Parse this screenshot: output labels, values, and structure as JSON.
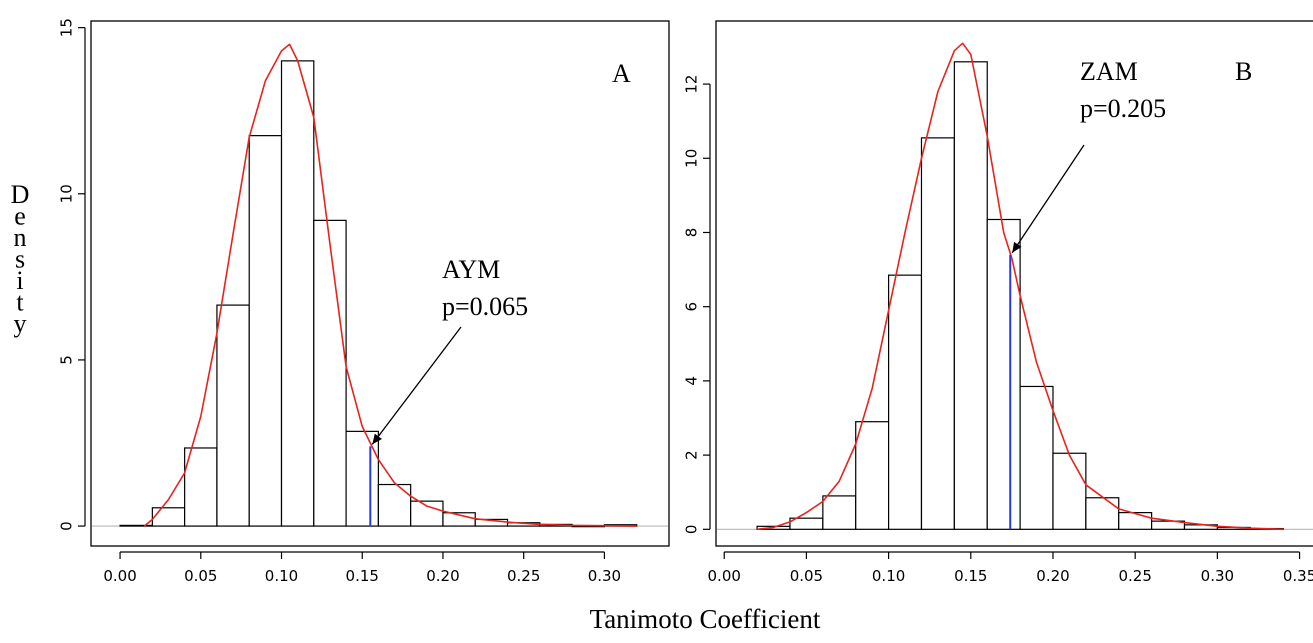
{
  "figure": {
    "ylabel": "Density",
    "xlabel": "Tanimoto Coefficient"
  },
  "chart_data": [
    {
      "type": "bar",
      "panel_label": "A",
      "bin_edges": [
        0.0,
        0.02,
        0.04,
        0.06,
        0.08,
        0.1,
        0.12,
        0.14,
        0.16,
        0.18,
        0.2,
        0.22,
        0.24,
        0.26,
        0.28,
        0.3,
        0.32
      ],
      "values": [
        0.02,
        0.55,
        2.35,
        6.65,
        11.75,
        14.0,
        9.2,
        2.85,
        1.25,
        0.75,
        0.4,
        0.2,
        0.1,
        0.05,
        0.0,
        0.04
      ],
      "density_curve": {
        "x": [
          0.015,
          0.02,
          0.03,
          0.04,
          0.05,
          0.06,
          0.07,
          0.08,
          0.09,
          0.1,
          0.105,
          0.11,
          0.12,
          0.13,
          0.14,
          0.15,
          0.155,
          0.16,
          0.17,
          0.18,
          0.19,
          0.2,
          0.22,
          0.24,
          0.26,
          0.28,
          0.3,
          0.32
        ],
        "y": [
          0.0,
          0.2,
          0.8,
          1.6,
          3.3,
          5.8,
          8.8,
          11.7,
          13.4,
          14.3,
          14.5,
          14.0,
          12.3,
          8.5,
          4.8,
          3.0,
          2.5,
          2.0,
          1.3,
          0.9,
          0.6,
          0.45,
          0.22,
          0.12,
          0.05,
          0.02,
          0.01,
          0.0
        ]
      },
      "marker": {
        "x": 0.155,
        "y": 2.4,
        "label": "AYM",
        "pvalue": "p=0.065"
      },
      "xticks": [
        "0.00",
        "0.05",
        "0.10",
        "0.15",
        "0.20",
        "0.25",
        "0.30"
      ],
      "yticks": [
        "0",
        "5",
        "10",
        "15"
      ],
      "xlim": [
        -0.018,
        0.34
      ],
      "ylim": [
        -0.6,
        15.2
      ],
      "colors": {
        "bars": "#000000",
        "curve": "#e8231e",
        "marker": "#2b3bd6",
        "baseline": "#b8b8b8"
      }
    },
    {
      "type": "bar",
      "panel_label": "B",
      "bin_edges": [
        0.02,
        0.04,
        0.06,
        0.08,
        0.1,
        0.12,
        0.14,
        0.16,
        0.18,
        0.2,
        0.22,
        0.24,
        0.26,
        0.28,
        0.3,
        0.32,
        0.34
      ],
      "values": [
        0.08,
        0.3,
        0.9,
        2.9,
        6.85,
        10.55,
        12.6,
        8.35,
        3.85,
        2.05,
        0.85,
        0.45,
        0.22,
        0.12,
        0.05,
        0.02
      ],
      "density_curve": {
        "x": [
          0.02,
          0.03,
          0.04,
          0.05,
          0.06,
          0.07,
          0.08,
          0.09,
          0.1,
          0.11,
          0.12,
          0.13,
          0.14,
          0.145,
          0.15,
          0.16,
          0.17,
          0.175,
          0.18,
          0.19,
          0.2,
          0.21,
          0.22,
          0.24,
          0.26,
          0.28,
          0.3,
          0.32,
          0.34
        ],
        "y": [
          0.0,
          0.05,
          0.2,
          0.45,
          0.75,
          1.3,
          2.3,
          3.8,
          5.9,
          8.0,
          10.0,
          11.8,
          12.9,
          13.1,
          12.8,
          10.6,
          8.0,
          7.3,
          6.3,
          4.5,
          3.2,
          2.0,
          1.2,
          0.55,
          0.3,
          0.18,
          0.08,
          0.03,
          0.0
        ]
      },
      "marker": {
        "x": 0.174,
        "y": 7.4,
        "label": "ZAM",
        "pvalue": "p=0.205"
      },
      "xticks": [
        "0.00",
        "0.05",
        "0.10",
        "0.15",
        "0.20",
        "0.25",
        "0.30",
        "0.35"
      ],
      "yticks": [
        "0",
        "2",
        "4",
        "6",
        "8",
        "10",
        "12"
      ],
      "xlim": [
        -0.005,
        0.36
      ],
      "ylim": [
        -0.45,
        13.7
      ],
      "colors": {
        "bars": "#000000",
        "curve": "#e8231e",
        "marker": "#2b3bd6",
        "baseline": "#b8b8b8"
      }
    }
  ]
}
